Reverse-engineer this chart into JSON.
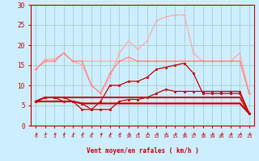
{
  "bg_color": "#cceeff",
  "grid_color": "#aacccc",
  "xlabel": "Vent moyen/en rafales ( km/h )",
  "xlabel_color": "#cc0000",
  "tick_color": "#cc0000",
  "xlim": [
    -0.5,
    23.5
  ],
  "ylim": [
    0,
    30
  ],
  "yticks": [
    0,
    5,
    10,
    15,
    20,
    25,
    30
  ],
  "xticks": [
    0,
    1,
    2,
    3,
    4,
    5,
    6,
    7,
    8,
    9,
    10,
    11,
    12,
    13,
    14,
    15,
    16,
    17,
    18,
    19,
    20,
    21,
    22,
    23
  ],
  "lines": [
    {
      "x": [
        0,
        1,
        2,
        3,
        4,
        5,
        6,
        7,
        8,
        9,
        10,
        11,
        12,
        13,
        14,
        15,
        16,
        17,
        18,
        19,
        20,
        21,
        22,
        23
      ],
      "y": [
        14,
        16.5,
        16.5,
        18,
        16,
        16,
        16,
        16,
        16,
        16,
        16,
        16,
        16,
        16,
        16,
        16,
        16,
        16,
        16,
        16,
        16,
        16,
        16,
        8
      ],
      "color": "#ffaaaa",
      "lw": 0.9,
      "marker": "+",
      "ms": 3,
      "zorder": 2
    },
    {
      "x": [
        0,
        1,
        2,
        3,
        4,
        5,
        6,
        7,
        8,
        9,
        10,
        11,
        12,
        13,
        14,
        15,
        16,
        17,
        18,
        19,
        20,
        21,
        22,
        23
      ],
      "y": [
        14,
        16,
        16,
        18,
        16,
        15,
        10,
        8,
        12,
        18,
        21,
        19,
        21,
        26,
        27,
        27.5,
        27.5,
        18,
        16,
        16,
        16,
        16,
        18,
        8
      ],
      "color": "#ffaaaa",
      "lw": 0.9,
      "marker": "+",
      "ms": 3,
      "zorder": 2
    },
    {
      "x": [
        0,
        1,
        2,
        3,
        4,
        5,
        6,
        7,
        8,
        9,
        10,
        11,
        12,
        13,
        14,
        15,
        16,
        17,
        18,
        19,
        20,
        21,
        22,
        23
      ],
      "y": [
        14,
        16,
        16,
        18,
        16,
        16,
        10,
        8,
        13,
        16,
        17,
        16,
        16,
        16,
        16,
        16,
        16,
        16,
        16,
        16,
        16,
        16,
        16,
        8
      ],
      "color": "#ff8888",
      "lw": 0.9,
      "marker": "+",
      "ms": 3,
      "zorder": 2
    },
    {
      "x": [
        0,
        1,
        2,
        3,
        4,
        5,
        6,
        7,
        8,
        9,
        10,
        11,
        12,
        13,
        14,
        15,
        16,
        17,
        18,
        19,
        20,
        21,
        22,
        23
      ],
      "y": [
        6,
        7,
        7,
        7,
        6,
        5.5,
        4,
        6,
        10,
        10,
        11,
        11,
        12,
        14,
        14.5,
        15,
        15.5,
        13,
        8,
        8,
        8,
        8,
        8,
        3
      ],
      "color": "#cc0000",
      "lw": 0.9,
      "marker": "s",
      "ms": 1.8,
      "zorder": 3
    },
    {
      "x": [
        0,
        1,
        2,
        3,
        4,
        5,
        6,
        7,
        8,
        9,
        10,
        11,
        12,
        13,
        14,
        15,
        16,
        17,
        18,
        19,
        20,
        21,
        22,
        23
      ],
      "y": [
        6,
        7,
        7,
        6,
        6,
        4,
        4,
        4,
        4,
        6,
        6.5,
        6.5,
        7,
        8,
        9,
        8.5,
        8.5,
        8.5,
        8.5,
        8.5,
        8.5,
        8.5,
        8.5,
        3
      ],
      "color": "#cc0000",
      "lw": 0.9,
      "marker": "s",
      "ms": 1.8,
      "zorder": 3
    },
    {
      "x": [
        0,
        1,
        2,
        3,
        4,
        5,
        6,
        7,
        8,
        9,
        10,
        11,
        12,
        13,
        14,
        15,
        16,
        17,
        18,
        19,
        20,
        21,
        22,
        23
      ],
      "y": [
        6,
        7,
        7,
        7,
        7,
        7,
        7,
        7,
        7,
        7,
        7,
        7,
        7,
        7,
        7,
        7,
        7,
        7,
        7,
        7,
        7,
        7,
        7,
        3
      ],
      "color": "#cc2222",
      "lw": 1.6,
      "marker": null,
      "ms": 0,
      "zorder": 2
    },
    {
      "x": [
        0,
        1,
        2,
        3,
        4,
        5,
        6,
        7,
        8,
        9,
        10,
        11,
        12,
        13,
        14,
        15,
        16,
        17,
        18,
        19,
        20,
        21,
        22,
        23
      ],
      "y": [
        6,
        6,
        6,
        6,
        6,
        5.5,
        5.5,
        5.5,
        5.5,
        5.5,
        5.5,
        5.5,
        5.5,
        5.5,
        5.5,
        5.5,
        5.5,
        5.5,
        5.5,
        5.5,
        5.5,
        5.5,
        5.5,
        3
      ],
      "color": "#cc0000",
      "lw": 1.6,
      "marker": null,
      "ms": 0,
      "zorder": 2
    }
  ],
  "arrow_color": "#cc0000"
}
